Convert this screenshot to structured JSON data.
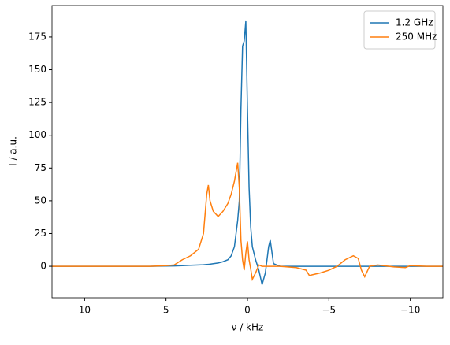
{
  "chart_data": {
    "type": "line",
    "x_label": "ν / kHz",
    "y_label": "I / a.u.",
    "x": [
      12,
      10,
      8,
      6,
      5,
      4.5,
      4,
      3.5,
      3,
      2.7,
      2.5,
      2.4,
      2.3,
      2.1,
      1.8,
      1.5,
      1.2,
      1,
      0.8,
      0.6,
      0.5,
      0.4,
      0.3,
      0.2,
      0.1,
      0,
      -0.1,
      -0.2,
      -0.3,
      -0.5,
      -0.7,
      -0.9,
      -1.1,
      -1.3,
      -1.4,
      -1.6,
      -2,
      -3,
      -3.6,
      -3.8,
      -4.5,
      -5,
      -5.5,
      -6,
      -6.5,
      -6.8,
      -7,
      -7.2,
      -7.5,
      -8,
      -9,
      -9.7,
      -10,
      -11,
      -12
    ],
    "series": [
      {
        "name": "1.2 GHz",
        "color": "#1f77b4",
        "values": [
          0,
          0,
          0,
          0,
          0.2,
          0.3,
          0.5,
          0.8,
          1,
          1.2,
          1.4,
          1.5,
          1.6,
          2,
          2.5,
          3.5,
          5,
          8,
          15,
          35,
          50,
          120,
          168,
          172,
          187,
          120,
          60,
          30,
          15,
          5,
          -3,
          -14,
          -5,
          15,
          20,
          2,
          0,
          0,
          0,
          0,
          0,
          0,
          0,
          0,
          0,
          0,
          0,
          0,
          0,
          0,
          0,
          0,
          0,
          0,
          0
        ]
      },
      {
        "name": "250 MHz",
        "color": "#ff7f0e",
        "values": [
          0,
          0,
          0,
          0,
          0.5,
          1,
          5,
          8,
          13,
          25,
          55,
          62,
          50,
          42,
          38,
          42,
          48,
          55,
          65,
          79,
          60,
          20,
          5,
          -3,
          10,
          19,
          5,
          -2,
          -10,
          -5,
          1,
          0,
          0,
          0,
          0,
          0,
          0,
          -1,
          -3,
          -7,
          -5,
          -3,
          0,
          5,
          8,
          6,
          -3,
          -8,
          0,
          1,
          -0.5,
          -1,
          0.5,
          0,
          0
        ]
      }
    ],
    "xlim": [
      12,
      -12
    ],
    "ylim": [
      -24,
      199
    ],
    "xticks": [
      10,
      5,
      0,
      {
        "value": -5,
        "label": "−5"
      },
      {
        "value": -10,
        "label": "−10"
      }
    ],
    "yticks": [
      0,
      25,
      50,
      75,
      100,
      125,
      150,
      175
    ],
    "grid": false,
    "legend": "upper right"
  }
}
